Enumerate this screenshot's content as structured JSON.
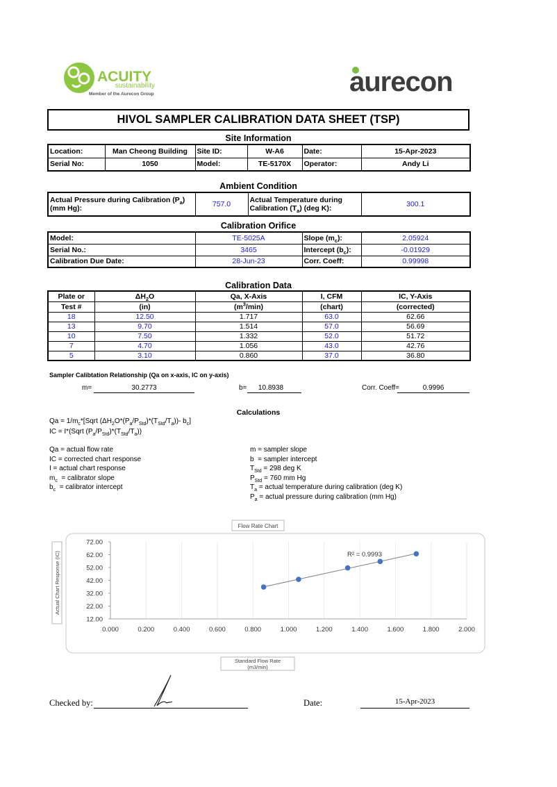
{
  "header": {
    "acuity": "ACUITY",
    "acuity_sub": "sustainability",
    "acuity_member": "Member of the Aurecon Group",
    "aurecon": "aurecon"
  },
  "title": "HIVOL SAMPLER CALIBRATION  DATA SHEET (TSP)",
  "site_information": {
    "heading": "Site Information",
    "rows": [
      [
        "Location:",
        "Man Cheong Building",
        "Site ID:",
        "W-A6",
        "Date:",
        "15-Apr-2023"
      ],
      [
        "Serial No:",
        "1050",
        "Model:",
        "TE-5170X",
        "Operator:",
        "Andy Li"
      ]
    ]
  },
  "ambient_condition": {
    "heading": "Ambient Condition",
    "rows": [
      [
        [
          "Actual Pressure during Calibration (P",
          {
            "sub": "a"
          },
          ")\n(mm Hg):"
        ],
        "757.0",
        [
          "Actual Temperature during\nCalibration (T",
          {
            "sub": "a"
          },
          ") (deg K):"
        ],
        "300.1"
      ]
    ]
  },
  "calibration_orifice": {
    "heading": "Calibration Orifice",
    "rows": [
      [
        "Model:",
        "TE-5025A",
        [
          "Slope (m",
          {
            "sub": "c"
          },
          "):"
        ],
        "2.05924"
      ],
      [
        "Serial No.:",
        "3465",
        [
          "Intercept (b",
          {
            "sub": "c"
          },
          "):"
        ],
        "-0.01929"
      ],
      [
        "Calibration Due Date:",
        "28-Jun-23",
        "Corr. Coeff:",
        "0.99998"
      ]
    ]
  },
  "calibration_data": {
    "heading": "Calibration Data",
    "header": [
      [
        "Plate or",
        [
          "ΔH",
          {
            "sub": "2"
          },
          "O"
        ],
        "Qa, X-Axis",
        "I, CFM",
        "IC, Y-Axis"
      ],
      [
        "Test #",
        "(in)",
        [
          "(m",
          {
            "sup": "3"
          },
          "/min)"
        ],
        "(chart)",
        "(corrected)"
      ]
    ],
    "rows": [
      [
        "18",
        "12.50",
        "1.717",
        "63.0",
        "62.66"
      ],
      [
        "13",
        "9.70",
        "1.514",
        "57.0",
        "56.69"
      ],
      [
        "10",
        "7.50",
        "1.332",
        "52.0",
        "51.72"
      ],
      [
        "7",
        "4.70",
        "1.056",
        "43.0",
        "42.76"
      ],
      [
        "5",
        "3.10",
        "0.860",
        "37.0",
        "36.80"
      ]
    ]
  },
  "sampler_relationship": {
    "heading": "Sampler Calibtation Relationship (Qa on x-axis, IC on y-axis)",
    "m_label": "m=",
    "m": "30.2773",
    "b_label": "b=",
    "b": "10.8938",
    "r_label": "Corr. Coeff=",
    "r": "0.9996"
  },
  "calculations": {
    "heading": "Calculations",
    "formulas": [
      [
        "Qa = 1/m",
        {
          "sub": "c"
        },
        "*[Sqrt (ΔH",
        {
          "sub": "2"
        },
        "O*(P",
        {
          "sub": "a"
        },
        "/P",
        {
          "sub": "Std"
        },
        ")*(T",
        {
          "sub": "Std"
        },
        "/T",
        {
          "sub": "a"
        },
        "))- b",
        {
          "sub": "c"
        },
        "]"
      ],
      [
        "IC = I*(Sqrt (P",
        {
          "sub": "a"
        },
        "/P",
        {
          "sub": "Std"
        },
        ")*(T",
        {
          "sub": "Std"
        },
        "/T",
        {
          "sub": "a"
        },
        "))"
      ]
    ],
    "left": [
      "Qa = actual flow rate",
      "IC = corrected chart response",
      "I = actual chart response",
      [
        "m",
        {
          "sub": "c"
        },
        "  = calibrator slope"
      ],
      [
        "b",
        {
          "sub": "c"
        },
        "  = calibrator intercept"
      ]
    ],
    "right": [
      "m = sampler slope",
      "b  = sampler intercept",
      [
        "T",
        {
          "sub": "Std"
        },
        " = 298 deg K"
      ],
      [
        "P",
        {
          "sub": "Std"
        },
        " = 760 mm Hg"
      ],
      [
        "T",
        {
          "sub": "a"
        },
        " = actual temperature during calibration (deg K)"
      ],
      [
        "P",
        {
          "sub": "a"
        },
        " = actual pressure during calibration (mm Hg)"
      ]
    ]
  },
  "chart_data": {
    "type": "scatter",
    "title": "Flow Rate Chart",
    "x_label": "Standard Flow Rate\n(m3/min)",
    "y_label": "Actual Chart Response (IC)",
    "x": [
      1.717,
      1.514,
      1.332,
      1.056,
      0.86
    ],
    "y": [
      62.66,
      56.69,
      51.72,
      42.76,
      36.8
    ],
    "color": "#4472c4",
    "trendline": {
      "slope": 30.2773,
      "intercept": 10.8938,
      "label": "R² = 0.9993",
      "color": "#7f7f7f"
    },
    "xlim": [
      0,
      2
    ],
    "xticks": [
      {
        "value": 0,
        "label": "0.000"
      },
      {
        "value": 0.2,
        "label": "0.200"
      },
      {
        "value": 0.4,
        "label": "0.400"
      },
      {
        "value": 0.6,
        "label": "0.600"
      },
      {
        "value": 0.8,
        "label": "0.800"
      },
      {
        "value": 1,
        "label": "1.000"
      },
      {
        "value": 1.2,
        "label": "1.200"
      },
      {
        "value": 1.4,
        "label": "1.400"
      },
      {
        "value": 1.6,
        "label": "1.600"
      },
      {
        "value": 1.8,
        "label": "1.800"
      },
      {
        "value": 2,
        "label": "2.000"
      }
    ],
    "ylim": [
      12,
      72
    ],
    "yticks": [
      {
        "value": 12,
        "label": "12.00"
      },
      {
        "value": 22,
        "label": "22.00"
      },
      {
        "value": 32,
        "label": "32.00"
      },
      {
        "value": 42,
        "label": "42.00"
      },
      {
        "value": 52,
        "label": "52.00"
      },
      {
        "value": 62,
        "label": "62.00"
      },
      {
        "value": 72,
        "label": "72.00"
      }
    ],
    "grid": "x"
  },
  "footer": {
    "checked_by": "Checked by:",
    "date_label": "Date:",
    "date": "15-Apr-2023"
  }
}
